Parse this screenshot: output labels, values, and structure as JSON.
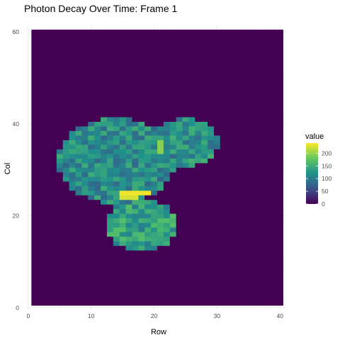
{
  "chart_data": {
    "type": "heatmap",
    "title": "Photon Decay Over Time: Frame 1",
    "xlabel": "Row",
    "ylabel": "Col",
    "xlim": [
      0.5,
      40.5
    ],
    "ylim": [
      0.5,
      60.5
    ],
    "x_ticks": [
      0,
      10,
      20,
      30,
      40
    ],
    "y_ticks": [
      0,
      20,
      40,
      60
    ],
    "grid": true,
    "background_value": 0,
    "legend": {
      "title": "value",
      "placement": "right",
      "range": [
        0,
        240
      ],
      "ticks": [
        0,
        50,
        100,
        150,
        200
      ]
    },
    "colormap": "viridis",
    "colors": [
      "#440154",
      "#3b528b",
      "#21918c",
      "#5ec962",
      "#fde725"
    ],
    "blobs": [
      {
        "name_hidden": true,
        "center": [
          14,
          32
        ],
        "radius": 9.3,
        "typical_value": 115
      },
      {
        "name_hidden": true,
        "center": [
          25,
          36
        ],
        "radius": 5.3,
        "typical_value": 120
      },
      {
        "name_hidden": true,
        "center": [
          18,
          18
        ],
        "radius": 5.8,
        "typical_value": 135
      }
    ],
    "hotspots": [
      {
        "x": [
          15,
          19
        ],
        "y": [
          25,
          25
        ],
        "value": 235
      },
      {
        "x": [
          15,
          17
        ],
        "y": [
          24,
          24
        ],
        "value": 225
      },
      {
        "x": [
          21,
          21
        ],
        "y": [
          34,
          36
        ],
        "value": 195
      }
    ]
  }
}
